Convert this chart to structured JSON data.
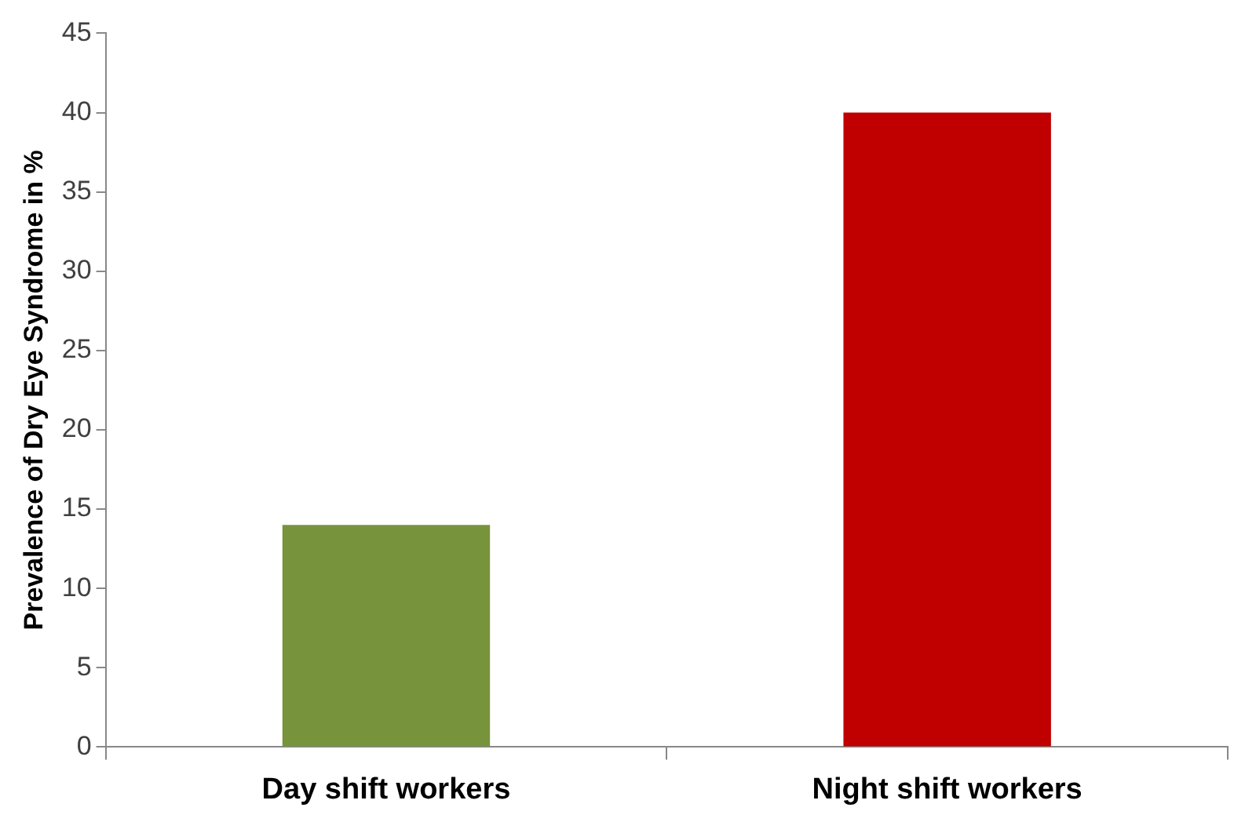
{
  "chart_data": {
    "type": "bar",
    "ylabel": "Prevalence of Dry Eye Syndrome in %",
    "categories": [
      "Day shift workers",
      "Night shift workers"
    ],
    "values": [
      14,
      40
    ],
    "colors": [
      "#77933c",
      "#c00000"
    ],
    "ylim": [
      0,
      45
    ],
    "yticks": [
      0,
      5,
      10,
      15,
      20,
      25,
      30,
      35,
      40,
      45
    ],
    "grid": false,
    "legend": false
  }
}
